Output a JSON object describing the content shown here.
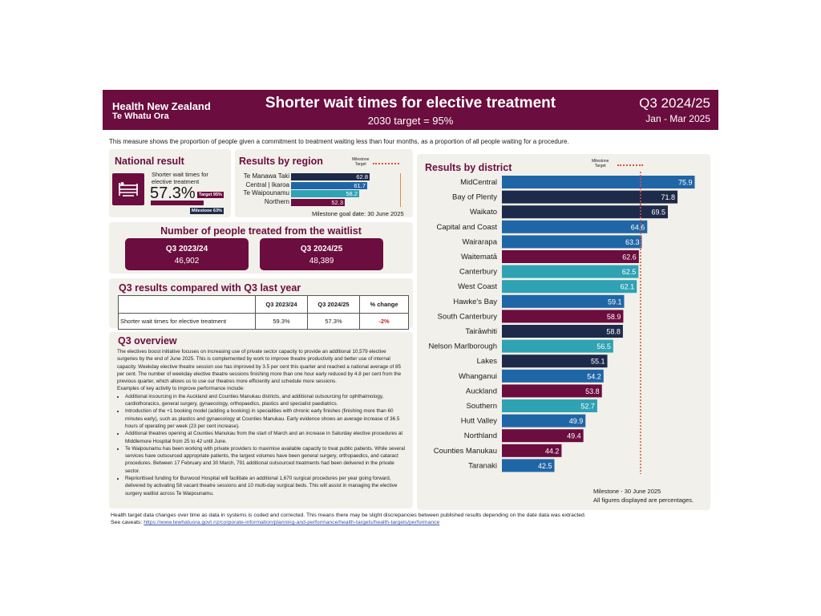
{
  "header": {
    "logo_line1": "Health New Zealand",
    "logo_line2": "Te Whatu Ora",
    "title": "Shorter wait times for elective treatment",
    "subtitle": "2030 target = 95%",
    "quarter": "Q3 2024/25",
    "months": "Jan - Mar 2025"
  },
  "intro": "This measure shows the proportion of people given a commitment to treatment waiting less than four months, as a proportion of all people waiting for a procedure.",
  "national": {
    "title": "National result",
    "label_line1": "Shorter wait times for",
    "label_line2": "elective treatment",
    "value": "57.3%",
    "progress_fraction": 0.573,
    "target_badge": "Target 95%",
    "milestone_badge": "Milestone 63%",
    "icon": "hospital-bed-icon"
  },
  "region": {
    "title": "Results by region",
    "legend_line1": "Milestone",
    "legend_line2": "Target",
    "goal_date": "Milestone goal date:  30 June 2025",
    "rows": [
      {
        "name": "Te Manawa Taki",
        "value": 62.8,
        "label": "62.8",
        "color": "#1e2a4a"
      },
      {
        "name": "Central | Ikaroa",
        "value": 61.7,
        "label": "61.7",
        "color": "#1f66a6"
      },
      {
        "name": "Te Waipounamu",
        "value": 58.2,
        "label": "58.2",
        "color": "#2fa2b4"
      },
      {
        "name": "Northern",
        "value": 52.3,
        "label": "52.3",
        "color": "#6b0d3e"
      }
    ]
  },
  "treated": {
    "title": "Number of people treated from the waitlist",
    "boxes": [
      {
        "heading": "Q3 2023/24",
        "value": "46,902"
      },
      {
        "heading": "Q3 2024/25",
        "value": "48,389"
      }
    ]
  },
  "compare": {
    "title": "Q3 results compared with Q3 last year",
    "headers": [
      "",
      "Q3 2023/24",
      "Q3 2024/25",
      "% change"
    ],
    "row": {
      "measure": "Shorter wait times for elective treatment",
      "prev": "59.3%",
      "curr": "57.3%",
      "change": "-2%"
    }
  },
  "overview": {
    "title": "Q3 overview",
    "paragraph": "The electives boost initiative focuses on increasing use of private sector capacity to provide an additional 10,579 elective surgeries by the end of June 2025. This is complemented by work to improve theatre productivity and better use of internal capacity. Weekday elective theatre session use has improved by 3.5 per cent this quarter and reached a national average of 85 per cent. The number of weekday elective theatre sessions finishing more than one hour early reduced by 4.8 per cent from the previous quarter, which allows us to use our theatres more efficiently and schedule more sessions.",
    "examples_heading": "Examples of key activity to improve performance include:",
    "bullets": [
      "Additional insourcing in the Auckland and Counties Manukau districts, and additional outsourcing for ophthalmology, cardiothoracics, general surgery, gynaecology, orthopaedics, plastics and specialist paediatrics.",
      "Introduction of the +1 booking model (adding a booking) in specialities with chronic early finishes (finishing more than 60 minutes early), such as plastics and gynaecology at Counties Manukau. Early evidence shows an average increase of 36.5 hours of operating per week (23 per cent increase).",
      "Additional theatres opening at Counties Manukau from the start of March and an increase in Saturday elective procedures at Middlemore Hospital from 25 to 42 until June.",
      "Te Waipounamu has been working with private providers to maximise available capacity to treat public patients. While several services have outsourced appropriate patients, the largest volumes have been general surgery, orthopaedics, and cataract procedures. Between 17 February and 30 March, 791 additional outsourced treatments had been delivered in the private sector.",
      "Reprioritised funding for Burwood Hospital will facilitate an additional 1,670 surgical procedures per year going forward, delivered by activating 58 vacant theatre sessions and 10 multi-day surgical beds. This will assist in managing the elective surgery waitlist across Te Waipounamu."
    ]
  },
  "district": {
    "title": "Results by district",
    "legend_line1": "Milestone",
    "legend_line2": "Target",
    "milestone_note": "Milestone -   30 June 2025",
    "pct_note": "All figures displayed are percentages."
  },
  "chart_data": {
    "type": "bar",
    "orientation": "horizontal",
    "title": "Results by district",
    "milestone": 63,
    "categories": [
      "MidCentral",
      "Bay of Plenty",
      "Waikato",
      "Capital and Coast",
      "Wairarapa",
      "Waitematā",
      "Canterbury",
      "West Coast",
      "Hawke's Bay",
      "South Canterbury",
      "Tairāwhiti",
      "Nelson Marlborough",
      "Lakes",
      "Whanganui",
      "Auckland",
      "Southern",
      "Hutt Valley",
      "Northland",
      "Counties Manukau",
      "Taranaki"
    ],
    "values": [
      75.9,
      71.8,
      69.5,
      64.6,
      63.3,
      62.6,
      62.5,
      62.1,
      59.1,
      58.9,
      58.8,
      56.5,
      55.1,
      54.2,
      53.8,
      52.7,
      49.9,
      49.4,
      44.2,
      42.5
    ],
    "colors": [
      "#1f66a6",
      "#1e2a4a",
      "#1e2a4a",
      "#1f66a6",
      "#1f66a6",
      "#6b0d3e",
      "#2fa2b4",
      "#2fa2b4",
      "#1f66a6",
      "#6b0d3e",
      "#1e2a4a",
      "#2fa2b4",
      "#1e2a4a",
      "#1f66a6",
      "#6b0d3e",
      "#2fa2b4",
      "#1f66a6",
      "#6b0d3e",
      "#6b0d3e",
      "#1f66a6"
    ]
  },
  "footer": {
    "note": "Health target data changes over time as data in systems is coded and corrected. This means there may be slight discrepancies between published results depending on the date data was extracted.",
    "caveats_label": "See caveats: ",
    "caveats_link": "https://www.tewhatuora.govt.nz/corporate-information/planning-and-performance/health-targets/health-targets/performance"
  }
}
